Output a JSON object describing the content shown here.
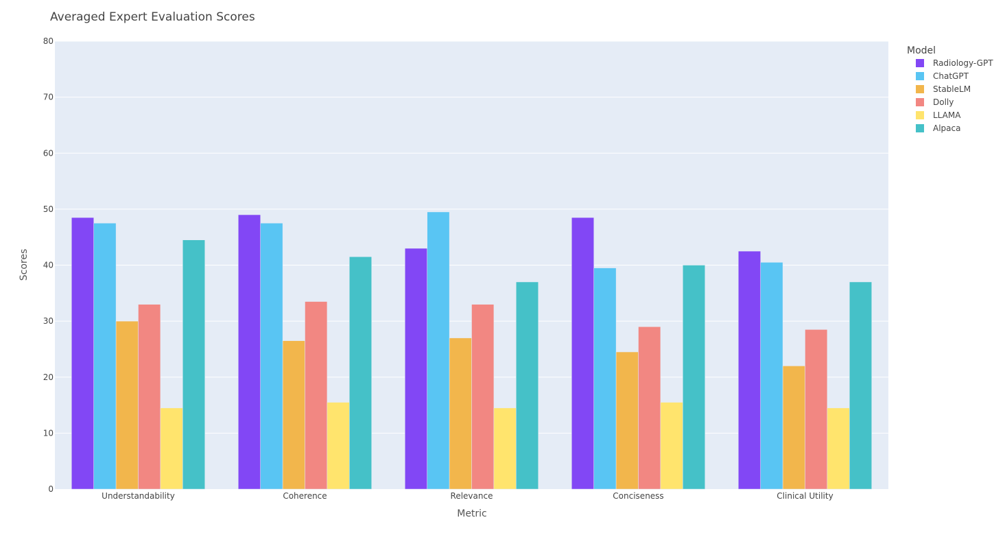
{
  "chart_data": {
    "type": "bar",
    "title": "Averaged Expert Evaluation Scores",
    "xlabel": "Metric",
    "ylabel": "Scores",
    "ylim": [
      0,
      80
    ],
    "yticks": [
      0,
      10,
      20,
      30,
      40,
      50,
      60,
      70,
      80
    ],
    "grid": true,
    "legend_title": "Model",
    "legend_position": "top-right",
    "categories": [
      "Understandability",
      "Coherence",
      "Relevance",
      "Conciseness",
      "Clinical Utility"
    ],
    "series": [
      {
        "name": "Radiology-GPT",
        "color": "#8247f5",
        "values": [
          48.5,
          49,
          43,
          48.5,
          42.5
        ]
      },
      {
        "name": "ChatGPT",
        "color": "#59c5f3",
        "values": [
          47.5,
          47.5,
          49.5,
          39.5,
          40.5
        ]
      },
      {
        "name": "StableLM",
        "color": "#f2b64c",
        "values": [
          30,
          26.5,
          27,
          24.5,
          22
        ]
      },
      {
        "name": "Dolly",
        "color": "#f28782",
        "values": [
          33,
          33.5,
          33,
          29,
          28.5
        ]
      },
      {
        "name": "LLAMA",
        "color": "#ffe46d",
        "values": [
          14.5,
          15.5,
          14.5,
          15.5,
          14.5
        ]
      },
      {
        "name": "Alpaca",
        "color": "#45c1c8",
        "values": [
          44.5,
          41.5,
          37,
          40,
          37
        ]
      }
    ],
    "plot_background": "#e5ecf6",
    "gridline_color": "#ffffff"
  }
}
